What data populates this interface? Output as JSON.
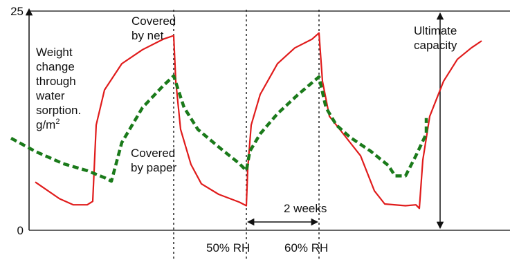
{
  "chart_data": {
    "type": "line",
    "title": "",
    "ylabel_lines": [
      "Weight",
      "change",
      "through",
      "water",
      "sorption.",
      "g/m"
    ],
    "ylabel_sup": "2",
    "ylim": [
      0,
      25
    ],
    "yticks": [
      "0",
      "25"
    ],
    "xlim": [
      0,
      7
    ],
    "grid": false,
    "annotations": {
      "covered_by_net": [
        "Covered",
        "by net"
      ],
      "covered_by_paper": [
        "Covered",
        "by paper"
      ],
      "ultimate_capacity": [
        "Ultimate",
        "capacity"
      ],
      "two_weeks": "2 weeks",
      "rh_50": "50% RH",
      "rh_60": "60% RH"
    },
    "dividers_x": [
      2.45,
      3.5,
      4.55
    ],
    "two_weeks_span": [
      3.5,
      4.55
    ],
    "ultimate_capacity_x": 6.3,
    "ultimate_capacity_range": [
      0,
      25
    ],
    "series": [
      {
        "style": "solid",
        "color": "#e01b1b",
        "points": [
          [
            0.45,
            5.5
          ],
          [
            0.8,
            3.6
          ],
          [
            1.0,
            2.9
          ],
          [
            1.2,
            2.9
          ],
          [
            1.28,
            3.3
          ],
          [
            1.33,
            12
          ],
          [
            1.45,
            16
          ],
          [
            1.7,
            19
          ],
          [
            2.0,
            20.6
          ],
          [
            2.3,
            21.8
          ],
          [
            2.45,
            22.2
          ],
          [
            2.48,
            17
          ],
          [
            2.55,
            11.5
          ],
          [
            2.7,
            7.5
          ],
          [
            2.85,
            5.3
          ],
          [
            3.1,
            4.1
          ],
          [
            3.4,
            3.2
          ],
          [
            3.5,
            2.8
          ],
          [
            3.52,
            7
          ],
          [
            3.57,
            12
          ],
          [
            3.7,
            15.5
          ],
          [
            3.95,
            19
          ],
          [
            4.2,
            20.8
          ],
          [
            4.45,
            21.8
          ],
          [
            4.55,
            22.5
          ],
          [
            4.6,
            17
          ],
          [
            4.7,
            13
          ],
          [
            4.9,
            11
          ],
          [
            5.15,
            8.5
          ],
          [
            5.35,
            4.5
          ],
          [
            5.5,
            3
          ],
          [
            5.8,
            2.8
          ],
          [
            5.95,
            2.9
          ],
          [
            6.0,
            2.5
          ],
          [
            6.05,
            8
          ],
          [
            6.15,
            13
          ],
          [
            6.35,
            17
          ],
          [
            6.55,
            19.5
          ],
          [
            6.75,
            20.8
          ],
          [
            6.9,
            21.6
          ]
        ]
      },
      {
        "style": "dashed",
        "color": "#1a7a1a",
        "points": [
          [
            0.1,
            10.5
          ],
          [
            0.45,
            9
          ],
          [
            0.85,
            7.6
          ],
          [
            1.2,
            6.8
          ],
          [
            1.45,
            6
          ],
          [
            1.55,
            5.6
          ],
          [
            1.7,
            10
          ],
          [
            2.0,
            14
          ],
          [
            2.3,
            16.5
          ],
          [
            2.45,
            17.6
          ],
          [
            2.6,
            14
          ],
          [
            2.8,
            11.5
          ],
          [
            3.1,
            9.5
          ],
          [
            3.4,
            7.6
          ],
          [
            3.5,
            6.8
          ],
          [
            3.55,
            9
          ],
          [
            3.7,
            11
          ],
          [
            3.95,
            13.3
          ],
          [
            4.25,
            15.5
          ],
          [
            4.55,
            17.5
          ],
          [
            4.65,
            14
          ],
          [
            4.8,
            12
          ],
          [
            5.0,
            10.6
          ],
          [
            5.3,
            9
          ],
          [
            5.55,
            7.4
          ],
          [
            5.65,
            6.2
          ],
          [
            5.8,
            6.2
          ],
          [
            5.95,
            8.5
          ],
          [
            6.1,
            11
          ],
          [
            6.1,
            12.8
          ]
        ]
      }
    ]
  }
}
